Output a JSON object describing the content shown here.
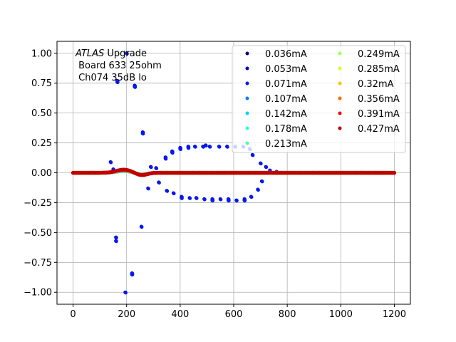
{
  "chart_data": {
    "type": "scatter",
    "title": "",
    "xlabel": "",
    "ylabel": "",
    "xlim": [
      -60,
      1260
    ],
    "ylim": [
      -1.1,
      1.1
    ],
    "xticks": [
      0,
      200,
      400,
      600,
      800,
      1000,
      1200
    ],
    "yticks": [
      -1.0,
      -0.75,
      -0.5,
      -0.25,
      0.0,
      0.25,
      0.5,
      0.75,
      1.0
    ],
    "xtick_labels": [
      "0",
      "200",
      "400",
      "600",
      "800",
      "1000",
      "1200"
    ],
    "ytick_labels": [
      "−1.00",
      "−0.75",
      "−0.50",
      "−0.25",
      "0.00",
      "0.25",
      "0.50",
      "0.75",
      "1.00"
    ],
    "grid": true,
    "legend_placement": "upper-right, 2 columns",
    "annotation": {
      "line1_italic": "ATLAS",
      "line1_rest": " Upgrade",
      "line2": " Board 633 25ohm",
      "line3": " Ch074 35dB lo"
    },
    "series": [
      {
        "name": "0.036mA",
        "color": "#00007f"
      },
      {
        "name": "0.053mA",
        "color": "#0000c8"
      },
      {
        "name": "0.071mA",
        "color": "#0018ff"
      },
      {
        "name": "0.107mA",
        "color": "#0080ff"
      },
      {
        "name": "0.142mA",
        "color": "#00d4ff"
      },
      {
        "name": "0.178mA",
        "color": "#29ffce"
      },
      {
        "name": "0.213mA",
        "color": "#4dff9e"
      },
      {
        "name": "0.249mA",
        "color": "#a0ff56"
      },
      {
        "name": "0.285mA",
        "color": "#ceff29"
      },
      {
        "name": "0.32mA",
        "color": "#ffc400"
      },
      {
        "name": "0.356mA",
        "color": "#ff6800"
      },
      {
        "name": "0.391mA",
        "color": "#f10800"
      },
      {
        "name": "0.427mA",
        "color": "#c00000"
      }
    ],
    "blue_group_points": [
      [
        140,
        0.09
      ],
      [
        150,
        0.03
      ],
      [
        160,
        -0.54
      ],
      [
        160,
        -0.57
      ],
      [
        165,
        0.77
      ],
      [
        165,
        0.76
      ],
      [
        195,
        -1.0
      ],
      [
        200,
        1.0
      ],
      [
        220,
        -0.84
      ],
      [
        220,
        -0.85
      ],
      [
        230,
        0.72
      ],
      [
        230,
        0.73
      ],
      [
        255,
        -0.45
      ],
      [
        260,
        0.33
      ],
      [
        260,
        0.34
      ],
      [
        280,
        -0.13
      ],
      [
        290,
        0.05
      ],
      [
        310,
        0.04
      ],
      [
        320,
        -0.08
      ],
      [
        345,
        0.13
      ],
      [
        345,
        0.12
      ],
      [
        350,
        -0.15
      ],
      [
        370,
        0.18
      ],
      [
        370,
        0.17
      ],
      [
        375,
        -0.17
      ],
      [
        400,
        0.2
      ],
      [
        400,
        0.21
      ],
      [
        405,
        -0.2
      ],
      [
        405,
        -0.21
      ],
      [
        430,
        0.21
      ],
      [
        430,
        0.22
      ],
      [
        435,
        -0.21
      ],
      [
        455,
        0.22
      ],
      [
        460,
        -0.21
      ],
      [
        485,
        0.22
      ],
      [
        490,
        -0.22
      ],
      [
        495,
        0.23
      ],
      [
        510,
        0.22
      ],
      [
        520,
        -0.22
      ],
      [
        520,
        -0.23
      ],
      [
        545,
        0.22
      ],
      [
        550,
        -0.22
      ],
      [
        575,
        0.22
      ],
      [
        580,
        -0.22
      ],
      [
        580,
        -0.23
      ],
      [
        605,
        0.22
      ],
      [
        610,
        -0.23
      ],
      [
        635,
        0.22
      ],
      [
        640,
        -0.23
      ],
      [
        640,
        -0.22
      ],
      [
        660,
        0.2
      ],
      [
        665,
        -0.2
      ],
      [
        670,
        0.15
      ],
      [
        690,
        -0.14
      ],
      [
        700,
        0.08
      ],
      [
        705,
        -0.07
      ],
      [
        720,
        0.05
      ],
      [
        735,
        0.02
      ],
      [
        760,
        0.01
      ]
    ]
  }
}
